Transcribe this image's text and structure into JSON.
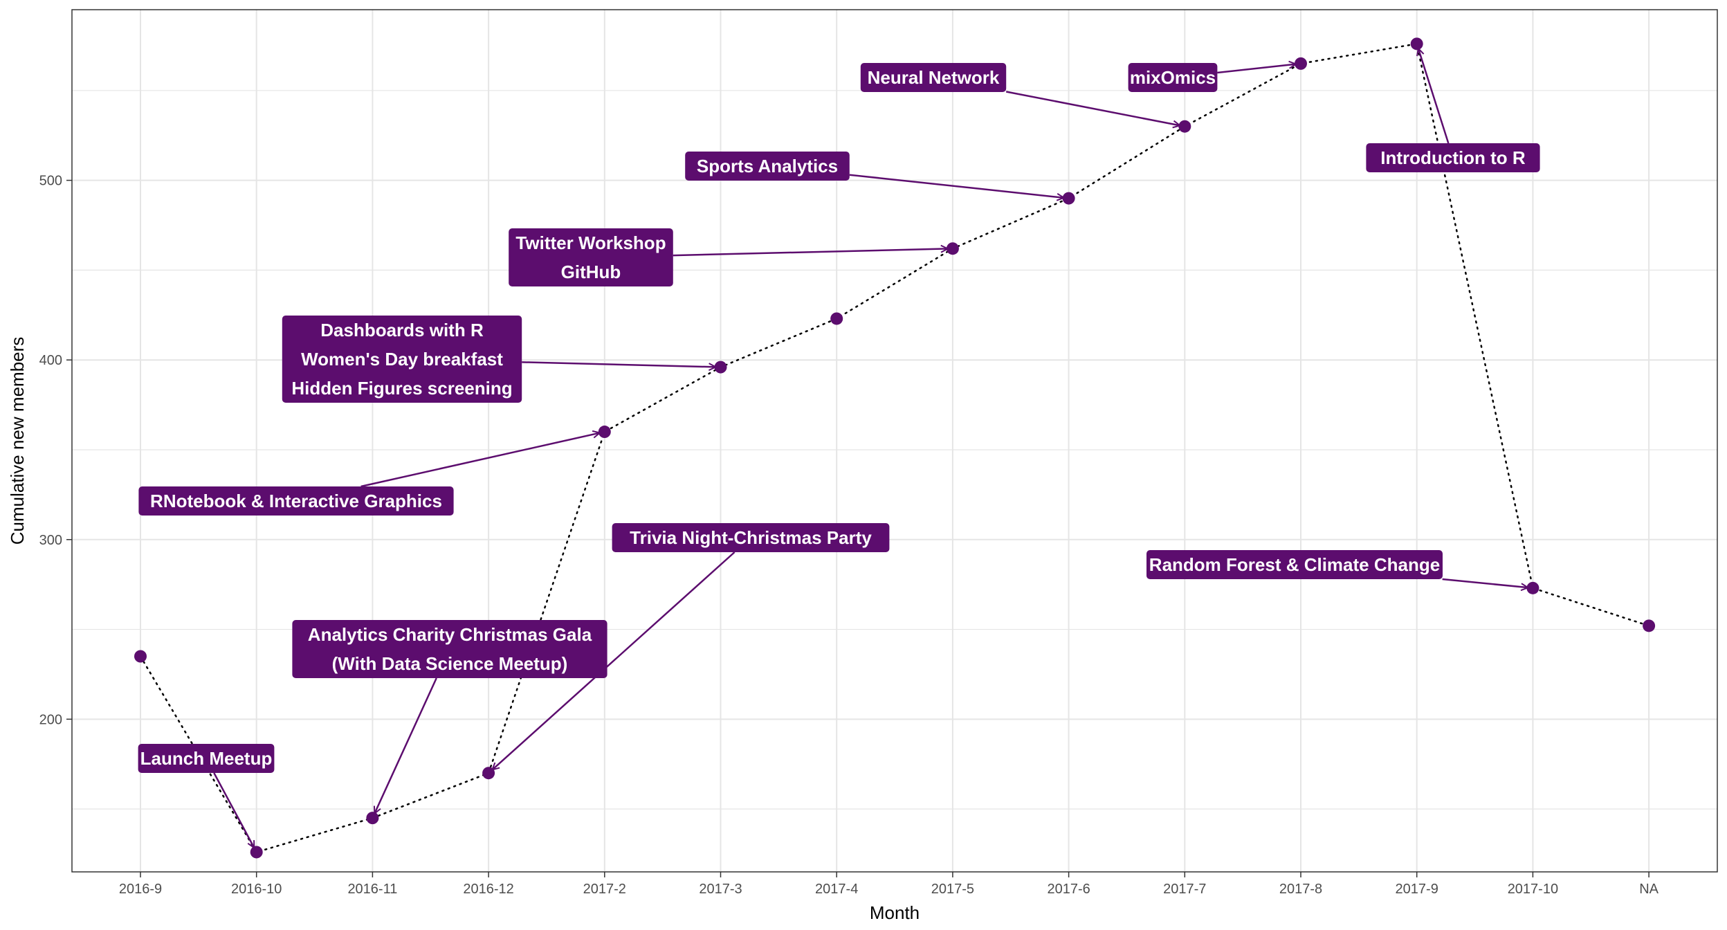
{
  "chart_data": {
    "type": "line",
    "title": "",
    "xlabel": "Month",
    "ylabel": "Cumulative new members",
    "categories": [
      "2016-9",
      "2016-10",
      "2016-11",
      "2016-12",
      "2017-2",
      "2017-3",
      "2017-4",
      "2017-5",
      "2017-6",
      "2017-7",
      "2017-8",
      "2017-9",
      "2017-10",
      "NA"
    ],
    "values": [
      235,
      126,
      145,
      170,
      360,
      396,
      423,
      462,
      490,
      530,
      565,
      576,
      273,
      252
    ],
    "ylim": [
      115,
      595
    ],
    "yticks": [
      200,
      300,
      400,
      500
    ],
    "grid": true,
    "line_style": "dotted",
    "annotations": [
      {
        "lines": [
          "Launch Meetup"
        ],
        "target": "2016-10"
      },
      {
        "lines": [
          "Analytics Charity Christmas Gala",
          "(With Data Science Meetup)"
        ],
        "target": "2016-11"
      },
      {
        "lines": [
          "Trivia Night-Christmas Party"
        ],
        "target": "2016-12"
      },
      {
        "lines": [
          "RNotebook & Interactive Graphics"
        ],
        "target": "2017-2"
      },
      {
        "lines": [
          "Dashboards with R",
          "Women's Day breakfast",
          "Hidden Figures screening"
        ],
        "target": "2017-3"
      },
      {
        "lines": [
          "Twitter Workshop",
          "GitHub"
        ],
        "target": "2017-5"
      },
      {
        "lines": [
          "Sports Analytics"
        ],
        "target": "2017-6"
      },
      {
        "lines": [
          "Neural Network"
        ],
        "target": "2017-7"
      },
      {
        "lines": [
          "mixOmics"
        ],
        "target": "2017-8"
      },
      {
        "lines": [
          "Introduction to R"
        ],
        "target": "2017-9"
      },
      {
        "lines": [
          "Random Forest & Climate Change"
        ],
        "target": "2017-10"
      }
    ]
  },
  "colors": {
    "accent": "#5c0d6e",
    "label_text": "#ffffff",
    "grid": "#e5e5e5",
    "panel_border": "#333333",
    "line": "#000000"
  }
}
